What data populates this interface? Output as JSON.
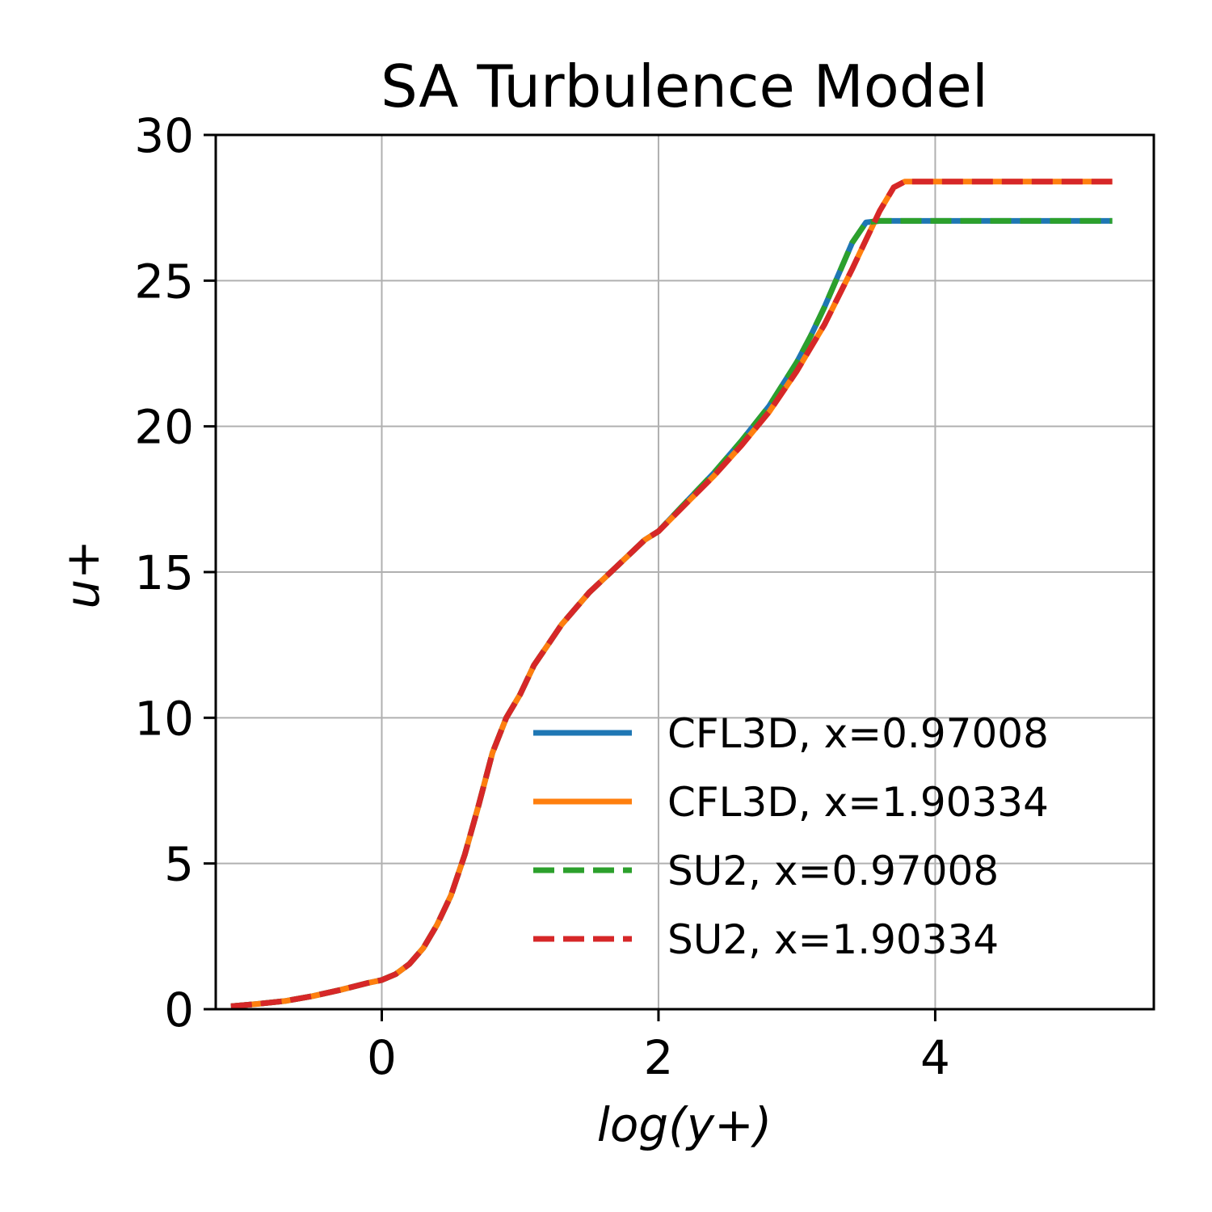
{
  "chart_data": {
    "type": "line",
    "title": "SA Turbulence Model",
    "xlabel": "log(y+)",
    "ylabel": "u+",
    "xlim": [
      -1.2,
      5.58
    ],
    "ylim": [
      0,
      30
    ],
    "xticks": [
      0,
      2,
      4
    ],
    "yticks": [
      0,
      5,
      10,
      15,
      20,
      25,
      30
    ],
    "grid": true,
    "legend_position": "lower-right",
    "series": [
      {
        "name": "CFL3D, x=0.97008",
        "color": "#1f77b4",
        "dash": "solid",
        "x": [
          -1.09,
          -0.9,
          -0.7,
          -0.5,
          -0.3,
          -0.1,
          0.0,
          0.1,
          0.2,
          0.3,
          0.4,
          0.5,
          0.6,
          0.7,
          0.8,
          0.9,
          1.0,
          1.1,
          1.2,
          1.3,
          1.4,
          1.5,
          1.6,
          1.7,
          1.8,
          1.9,
          2.0,
          2.2,
          2.4,
          2.6,
          2.8,
          3.0,
          3.1,
          3.2,
          3.3,
          3.4,
          3.5,
          3.6,
          4.0,
          4.5,
          5.0,
          5.28
        ],
        "y": [
          0.1,
          0.18,
          0.28,
          0.45,
          0.66,
          0.9,
          1.0,
          1.2,
          1.55,
          2.1,
          2.9,
          3.9,
          5.3,
          7.0,
          8.8,
          10.0,
          10.8,
          11.8,
          12.5,
          13.2,
          13.75,
          14.3,
          14.75,
          15.2,
          15.65,
          16.1,
          16.4,
          17.4,
          18.4,
          19.5,
          20.7,
          22.2,
          23.1,
          24.1,
          25.2,
          26.3,
          27.0,
          27.05,
          27.05,
          27.05,
          27.05,
          27.05
        ]
      },
      {
        "name": "CFL3D, x=1.90334",
        "color": "#ff7f0e",
        "dash": "solid",
        "x": [
          -1.09,
          -0.9,
          -0.7,
          -0.5,
          -0.3,
          -0.1,
          0.0,
          0.1,
          0.2,
          0.3,
          0.4,
          0.5,
          0.6,
          0.7,
          0.8,
          0.9,
          1.0,
          1.1,
          1.2,
          1.3,
          1.4,
          1.5,
          1.6,
          1.7,
          1.8,
          1.9,
          2.0,
          2.2,
          2.4,
          2.6,
          2.8,
          3.0,
          3.2,
          3.4,
          3.5,
          3.6,
          3.7,
          3.78,
          4.0,
          4.5,
          5.0,
          5.28
        ],
        "y": [
          0.1,
          0.18,
          0.28,
          0.45,
          0.66,
          0.9,
          1.0,
          1.2,
          1.55,
          2.1,
          2.9,
          3.9,
          5.3,
          7.0,
          8.8,
          10.0,
          10.8,
          11.8,
          12.5,
          13.2,
          13.75,
          14.3,
          14.75,
          15.2,
          15.65,
          16.1,
          16.4,
          17.35,
          18.3,
          19.35,
          20.5,
          21.9,
          23.5,
          25.4,
          26.4,
          27.4,
          28.2,
          28.4,
          28.4,
          28.4,
          28.4,
          28.4
        ]
      },
      {
        "name": "SU2, x=0.97008",
        "color": "#2ca02c",
        "dash": "dashed",
        "x": [
          -1.09,
          -0.9,
          -0.7,
          -0.5,
          -0.3,
          -0.1,
          0.0,
          0.1,
          0.2,
          0.3,
          0.4,
          0.5,
          0.6,
          0.7,
          0.8,
          0.9,
          1.0,
          1.1,
          1.2,
          1.3,
          1.4,
          1.5,
          1.6,
          1.7,
          1.8,
          1.9,
          2.0,
          2.2,
          2.4,
          2.6,
          2.8,
          3.0,
          3.1,
          3.2,
          3.3,
          3.4,
          3.5,
          3.6,
          4.0,
          4.5,
          5.0,
          5.28
        ],
        "y": [
          0.1,
          0.18,
          0.28,
          0.45,
          0.66,
          0.9,
          1.0,
          1.2,
          1.55,
          2.1,
          2.9,
          3.9,
          5.3,
          7.0,
          8.8,
          10.0,
          10.8,
          11.8,
          12.5,
          13.2,
          13.75,
          14.3,
          14.75,
          15.2,
          15.65,
          16.1,
          16.4,
          17.4,
          18.4,
          19.5,
          20.7,
          22.2,
          23.1,
          24.1,
          25.2,
          26.3,
          27.0,
          27.05,
          27.05,
          27.05,
          27.05,
          27.05
        ]
      },
      {
        "name": "SU2, x=1.90334",
        "color": "#d62728",
        "dash": "dashed",
        "x": [
          -1.09,
          -0.9,
          -0.7,
          -0.5,
          -0.3,
          -0.1,
          0.0,
          0.1,
          0.2,
          0.3,
          0.4,
          0.5,
          0.6,
          0.7,
          0.8,
          0.9,
          1.0,
          1.1,
          1.2,
          1.3,
          1.4,
          1.5,
          1.6,
          1.7,
          1.8,
          1.9,
          2.0,
          2.2,
          2.4,
          2.6,
          2.8,
          3.0,
          3.2,
          3.4,
          3.5,
          3.6,
          3.7,
          3.78,
          4.0,
          4.5,
          5.0,
          5.28
        ],
        "y": [
          0.1,
          0.18,
          0.28,
          0.45,
          0.66,
          0.9,
          1.0,
          1.2,
          1.55,
          2.1,
          2.9,
          3.9,
          5.3,
          7.0,
          8.8,
          10.0,
          10.8,
          11.8,
          12.5,
          13.2,
          13.75,
          14.3,
          14.75,
          15.2,
          15.65,
          16.1,
          16.4,
          17.35,
          18.3,
          19.35,
          20.5,
          21.9,
          23.5,
          25.4,
          26.4,
          27.4,
          28.2,
          28.4,
          28.4,
          28.4,
          28.4,
          28.4
        ]
      }
    ]
  }
}
